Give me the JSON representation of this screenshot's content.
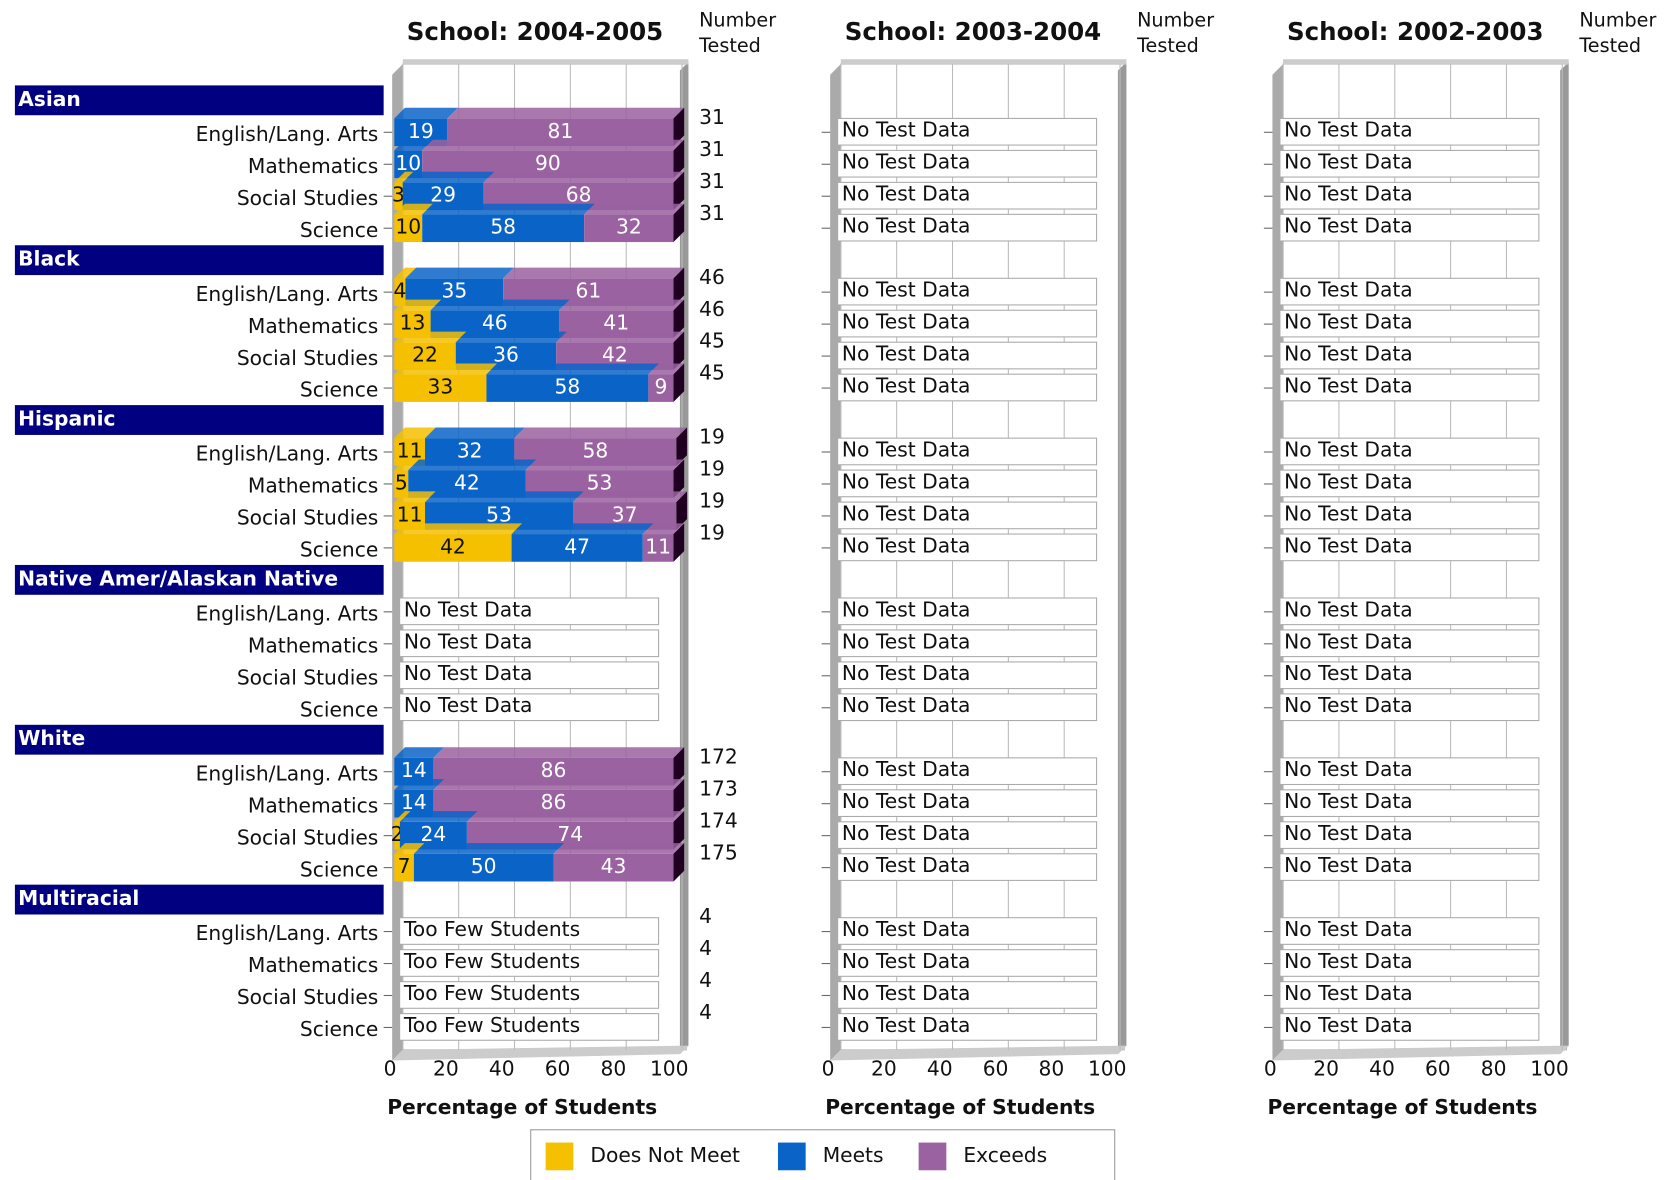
{
  "chart_data": [
    {
      "type": "bar",
      "orientation": "horizontal",
      "stacked": true,
      "title": "School: 2004-2005",
      "xlabel": "Percentage of Students",
      "xlim": [
        0,
        100
      ],
      "xticks": [
        0,
        20,
        40,
        60,
        80,
        100
      ],
      "grid": true,
      "number_tested_label": "Number Tested",
      "groups": [
        "Asian",
        "Black",
        "Hispanic",
        "Native Amer/Alaskan Native",
        "White",
        "Multiracial"
      ],
      "categories": [
        "English/Lang. Arts",
        "Mathematics",
        "Social Studies",
        "Science",
        "English/Lang. Arts",
        "Mathematics",
        "Social Studies",
        "Science",
        "English/Lang. Arts",
        "Mathematics",
        "Social Studies",
        "Science",
        "English/Lang. Arts",
        "Mathematics",
        "Social Studies",
        "Science",
        "English/Lang. Arts",
        "Mathematics",
        "Social Studies",
        "Science",
        "English/Lang. Arts",
        "Mathematics",
        "Social Studies",
        "Science"
      ],
      "series": [
        {
          "name": "Does Not Meet",
          "color": "#f5c000",
          "values": [
            null,
            null,
            3,
            10,
            4,
            13,
            22,
            33,
            11,
            5,
            11,
            42,
            null,
            null,
            null,
            null,
            null,
            null,
            2,
            7,
            null,
            null,
            null,
            null
          ]
        },
        {
          "name": "Meets",
          "color": "#0a64c8",
          "values": [
            19,
            10,
            29,
            58,
            35,
            46,
            36,
            58,
            32,
            42,
            53,
            47,
            null,
            null,
            null,
            null,
            14,
            14,
            24,
            50,
            null,
            null,
            null,
            null
          ]
        },
        {
          "name": "Exceeds",
          "color": "#9a62a0",
          "values": [
            81,
            90,
            68,
            32,
            61,
            41,
            42,
            9,
            58,
            53,
            37,
            11,
            null,
            null,
            null,
            null,
            86,
            86,
            74,
            43,
            null,
            null,
            null,
            null
          ]
        }
      ],
      "number_tested": [
        31,
        31,
        31,
        31,
        46,
        46,
        45,
        45,
        19,
        19,
        19,
        19,
        null,
        null,
        null,
        null,
        172,
        173,
        174,
        175,
        4,
        4,
        4,
        4
      ],
      "notes": [
        null,
        null,
        null,
        null,
        null,
        null,
        null,
        null,
        null,
        null,
        null,
        null,
        "No Test Data",
        "No Test Data",
        "No Test Data",
        "No Test Data",
        null,
        null,
        null,
        null,
        "Too Few Students",
        "Too Few Students",
        "Too Few Students",
        "Too Few Students"
      ]
    },
    {
      "type": "bar",
      "orientation": "horizontal",
      "stacked": true,
      "title": "School: 2003-2004",
      "xlabel": "Percentage of Students",
      "xlim": [
        0,
        100
      ],
      "xticks": [
        0,
        20,
        40,
        60,
        80,
        100
      ],
      "grid": true,
      "number_tested_label": "Number Tested",
      "notes": [
        "No Test Data",
        "No Test Data",
        "No Test Data",
        "No Test Data",
        "No Test Data",
        "No Test Data",
        "No Test Data",
        "No Test Data",
        "No Test Data",
        "No Test Data",
        "No Test Data",
        "No Test Data",
        "No Test Data",
        "No Test Data",
        "No Test Data",
        "No Test Data",
        "No Test Data",
        "No Test Data",
        "No Test Data",
        "No Test Data",
        "No Test Data",
        "No Test Data",
        "No Test Data",
        "No Test Data"
      ]
    },
    {
      "type": "bar",
      "orientation": "horizontal",
      "stacked": true,
      "title": "School: 2002-2003",
      "xlabel": "Percentage of Students",
      "xlim": [
        0,
        100
      ],
      "xticks": [
        0,
        20,
        40,
        60,
        80,
        100
      ],
      "grid": true,
      "number_tested_label": "Number Tested",
      "notes": [
        "No Test Data",
        "No Test Data",
        "No Test Data",
        "No Test Data",
        "No Test Data",
        "No Test Data",
        "No Test Data",
        "No Test Data",
        "No Test Data",
        "No Test Data",
        "No Test Data",
        "No Test Data",
        "No Test Data",
        "No Test Data",
        "No Test Data",
        "No Test Data",
        "No Test Data",
        "No Test Data",
        "No Test Data",
        "No Test Data",
        "No Test Data",
        "No Test Data",
        "No Test Data",
        "No Test Data"
      ]
    }
  ]
}
